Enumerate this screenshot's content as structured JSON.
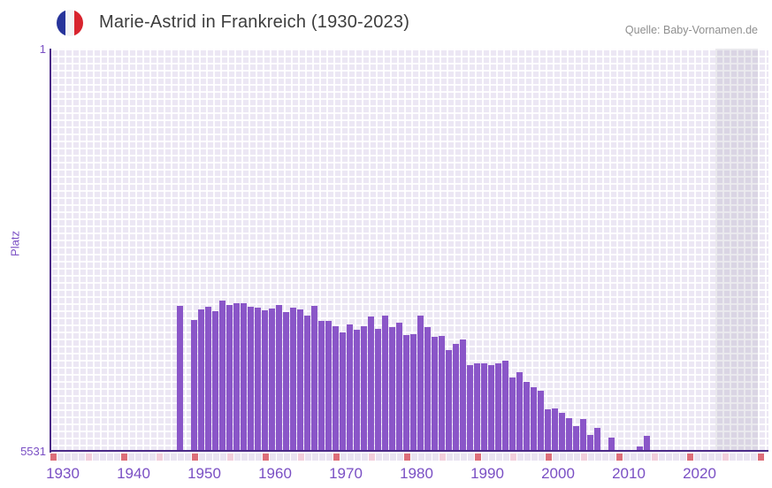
{
  "header": {
    "title": "Marie-Astrid in Frankreich (1930-2023)",
    "source": "Quelle: Baby-Vornamen.de",
    "flag_icon": "france-flag-icon"
  },
  "chart_data": {
    "type": "bar",
    "title": "Marie-Astrid in Frankreich (1930-2023)",
    "ylabel": "Platz",
    "xlabel": "",
    "y_axis": {
      "top_tick": "1",
      "bottom_tick": "5531",
      "min": 1,
      "max": 5531,
      "inverted": true,
      "note": "rank 1 at top, bars rise from bottom axis; taller bar = better rank"
    },
    "x_axis": {
      "first_year": 1930,
      "last_year": 2023,
      "tick_labels": [
        "1930",
        "1940",
        "1950",
        "1960",
        "1970",
        "1980",
        "1990",
        "2000",
        "2010",
        "2020"
      ]
    },
    "grid": "on",
    "legend": "none",
    "series": [
      {
        "name": "Platz",
        "points": [
          {
            "year": 1948,
            "rank": 3530
          },
          {
            "year": 1950,
            "rank": 3724
          },
          {
            "year": 1951,
            "rank": 3578
          },
          {
            "year": 1952,
            "rank": 3541
          },
          {
            "year": 1953,
            "rank": 3602
          },
          {
            "year": 1954,
            "rank": 3457
          },
          {
            "year": 1955,
            "rank": 3518
          },
          {
            "year": 1956,
            "rank": 3493
          },
          {
            "year": 1957,
            "rank": 3493
          },
          {
            "year": 1958,
            "rank": 3541
          },
          {
            "year": 1959,
            "rank": 3554
          },
          {
            "year": 1960,
            "rank": 3596
          },
          {
            "year": 1961,
            "rank": 3566
          },
          {
            "year": 1962,
            "rank": 3518
          },
          {
            "year": 1963,
            "rank": 3615
          },
          {
            "year": 1964,
            "rank": 3554
          },
          {
            "year": 1965,
            "rank": 3574
          },
          {
            "year": 1966,
            "rank": 3669
          },
          {
            "year": 1967,
            "rank": 3533
          },
          {
            "year": 1968,
            "rank": 3742
          },
          {
            "year": 1969,
            "rank": 3742
          },
          {
            "year": 1970,
            "rank": 3808
          },
          {
            "year": 1971,
            "rank": 3891
          },
          {
            "year": 1972,
            "rank": 3781
          },
          {
            "year": 1973,
            "rank": 3861
          },
          {
            "year": 1974,
            "rank": 3813
          },
          {
            "year": 1975,
            "rank": 3679
          },
          {
            "year": 1976,
            "rank": 3841
          },
          {
            "year": 1977,
            "rank": 3660
          },
          {
            "year": 1978,
            "rank": 3821
          },
          {
            "year": 1979,
            "rank": 3760
          },
          {
            "year": 1980,
            "rank": 3934
          },
          {
            "year": 1981,
            "rank": 3922
          },
          {
            "year": 1982,
            "rank": 3660
          },
          {
            "year": 1983,
            "rank": 3824
          },
          {
            "year": 1984,
            "rank": 3954
          },
          {
            "year": 1985,
            "rank": 3946
          },
          {
            "year": 1986,
            "rank": 4132
          },
          {
            "year": 1987,
            "rank": 4055
          },
          {
            "year": 1988,
            "rank": 3994
          },
          {
            "year": 1989,
            "rank": 4343
          },
          {
            "year": 1990,
            "rank": 4318
          },
          {
            "year": 1991,
            "rank": 4318
          },
          {
            "year": 1992,
            "rank": 4339
          },
          {
            "year": 1993,
            "rank": 4318
          },
          {
            "year": 1994,
            "rank": 4286
          },
          {
            "year": 1995,
            "rank": 4509
          },
          {
            "year": 1996,
            "rank": 4440
          },
          {
            "year": 1997,
            "rank": 4570
          },
          {
            "year": 1998,
            "rank": 4650
          },
          {
            "year": 1999,
            "rank": 4694
          },
          {
            "year": 2000,
            "rank": 4953
          },
          {
            "year": 2001,
            "rank": 4934
          },
          {
            "year": 2002,
            "rank": 5002
          },
          {
            "year": 2003,
            "rank": 5075
          },
          {
            "year": 2004,
            "rank": 5184
          },
          {
            "year": 2005,
            "rank": 5080
          },
          {
            "year": 2006,
            "rank": 5298
          },
          {
            "year": 2007,
            "rank": 5208
          },
          {
            "year": 2009,
            "rank": 5338
          },
          {
            "year": 2013,
            "rank": 5460
          },
          {
            "year": 2014,
            "rank": 5310
          }
        ]
      }
    ],
    "years_without_rank": [
      1930,
      1931,
      1932,
      1933,
      1934,
      1935,
      1936,
      1937,
      1938,
      1939,
      1940,
      1941,
      1942,
      1943,
      1944,
      1945,
      1946,
      1947,
      1949,
      2008,
      2010,
      2011,
      2012,
      2015,
      2016,
      2017,
      2018,
      2019,
      2020,
      2021,
      2022,
      2023
    ],
    "marker_strip": {
      "start_year": 1930,
      "end_year": 2030,
      "decade_color": "#dd6e79",
      "half_decade_color": "#f2cedb",
      "default_color": "#e9e3f1"
    },
    "highlight_band": {
      "start_year": 2024,
      "end_year": 2030,
      "color": "rgba(104,92,122,0.13)"
    },
    "colors": {
      "bar": "#8a56c8",
      "axis_line": "#4b2a87",
      "tick_label": "#7a4fc4",
      "plot_background": "#ece7f4",
      "grid_line": "#ffffff",
      "title": "#3d3d3d",
      "source": "#8f8f8f",
      "flag_blue": "#27349b",
      "flag_red": "#d8242e"
    }
  }
}
